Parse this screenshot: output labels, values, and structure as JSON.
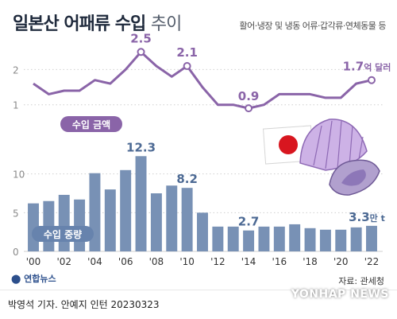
{
  "header": {
    "title_main": "일본산 어패류 수입",
    "title_suffix": "추이",
    "subtitle": "활어·냉장 및 냉동 어류·갑각류·연체동물 등"
  },
  "chart_data": [
    {
      "type": "line",
      "series_label": "수입 금액",
      "unit": "억 달러",
      "x": [
        2000,
        2001,
        2002,
        2003,
        2004,
        2005,
        2006,
        2007,
        2008,
        2009,
        2010,
        2011,
        2012,
        2013,
        2014,
        2015,
        2016,
        2017,
        2018,
        2019,
        2020,
        2021,
        2022
      ],
      "values": [
        1.6,
        1.3,
        1.4,
        1.4,
        1.7,
        1.6,
        2.0,
        2.5,
        2.1,
        1.8,
        2.1,
        1.5,
        1.0,
        1.0,
        0.9,
        1.0,
        1.3,
        1.3,
        1.3,
        1.2,
        1.2,
        1.6,
        1.7
      ],
      "ylim": [
        0,
        2.8
      ],
      "yticks": [
        "1",
        "2"
      ],
      "data_labels": [
        {
          "x": 2007,
          "text": "2.5"
        },
        {
          "x": 2010,
          "text": "2.1"
        },
        {
          "x": 2014,
          "text": "0.9"
        },
        {
          "x": 2022,
          "text": "1.7",
          "unit": "억 달러"
        }
      ],
      "color": "#8a64a8"
    },
    {
      "type": "bar",
      "series_label": "수입 중량",
      "unit": "만 t",
      "x": [
        2000,
        2001,
        2002,
        2003,
        2004,
        2005,
        2006,
        2007,
        2008,
        2009,
        2010,
        2011,
        2012,
        2013,
        2014,
        2015,
        2016,
        2017,
        2018,
        2019,
        2020,
        2021,
        2022
      ],
      "values": [
        6.2,
        6.5,
        7.3,
        6.7,
        10.1,
        8.0,
        10.5,
        12.3,
        7.5,
        8.5,
        8.2,
        5.0,
        3.2,
        3.2,
        2.7,
        3.2,
        3.2,
        3.5,
        3.0,
        2.8,
        2.8,
        3.1,
        3.3
      ],
      "ylim": [
        0,
        15
      ],
      "yticks": [
        "0",
        "5",
        "10"
      ],
      "data_labels": [
        {
          "x": 2007,
          "text": "12.3"
        },
        {
          "x": 2010,
          "text": "8.2"
        },
        {
          "x": 2014,
          "text": "2.7"
        },
        {
          "x": 2022,
          "text": "3.3",
          "unit": "만 t"
        }
      ],
      "color": "#7891b5"
    }
  ],
  "x_tick_labels": [
    "'00",
    "'02",
    "'04",
    "'06",
    "'08",
    "'10",
    "'12",
    "'14",
    "'16",
    "'18",
    "'20",
    "'22"
  ],
  "source": "자료: 관세청",
  "credit": "박영석 기자. 안예지 인턴  20230323",
  "logo_left": "연합뉴스",
  "logo_right": "YONHAP NEWS",
  "colors": {
    "line": "#8a64a8",
    "bars": "#7891b5",
    "label_line": "#8a64a8",
    "label_bar": "#4d6a94",
    "title": "#1f2a3c",
    "flag_red": "#d8161f"
  },
  "icons": [
    "japan-flag-icon",
    "seashell-icon"
  ]
}
